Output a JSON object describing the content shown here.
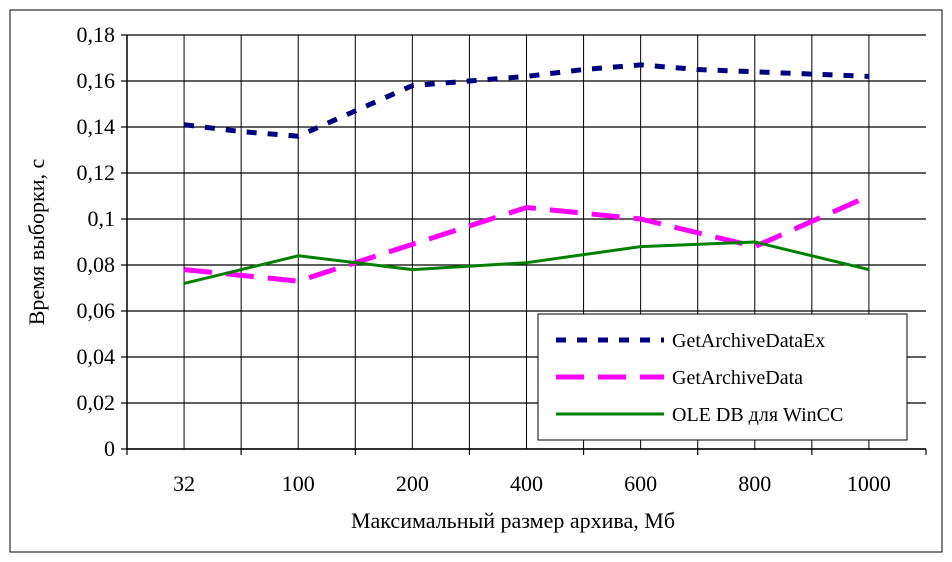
{
  "chart_data": {
    "type": "line",
    "title": "",
    "xlabel": "Максимальный размер архива, Мб",
    "ylabel": "Время выборки, с",
    "categories": [
      "32",
      "100",
      "200",
      "400",
      "600",
      "800",
      "1000"
    ],
    "ylim": [
      0,
      0.18
    ],
    "ytick_labels": [
      "0",
      "0,02",
      "0,04",
      "0,06",
      "0,08",
      "0,1",
      "0,12",
      "0,14",
      "0,16",
      "0,18"
    ],
    "grid": true,
    "legend_position": "bottom-right",
    "series": [
      {
        "name": "GetArchiveDataEx",
        "color": "#000080",
        "style": "dotted",
        "x": [
          0,
          0.5,
          1,
          1.5,
          2,
          2.5,
          3,
          3.5,
          4,
          4.5,
          5,
          5.5,
          6
        ],
        "values": [
          0.141,
          0.138,
          0.136,
          0.147,
          0.158,
          0.16,
          0.162,
          0.165,
          0.167,
          0.165,
          0.164,
          0.163,
          0.162
        ]
      },
      {
        "name": "GetArchiveData",
        "color": "#FF00FF",
        "style": "dashed",
        "x": [
          0,
          1,
          2,
          2.5,
          3,
          4,
          5,
          6
        ],
        "values": [
          0.078,
          0.073,
          0.089,
          0.097,
          0.105,
          0.1,
          0.088,
          0.11
        ]
      },
      {
        "name": "OLE DB для WinCC",
        "color": "#008000",
        "style": "solid",
        "x": [
          0,
          1,
          2,
          3,
          4,
          5,
          6
        ],
        "values": [
          0.072,
          0.084,
          0.078,
          0.081,
          0.088,
          0.09,
          0.078
        ]
      }
    ]
  }
}
